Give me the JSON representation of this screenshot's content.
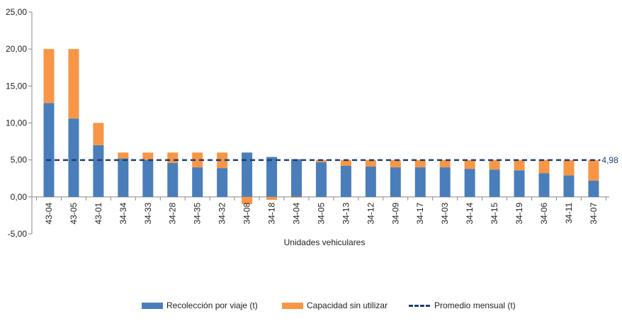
{
  "chart_data": {
    "type": "bar",
    "stacked": true,
    "title": "",
    "xlabel": "Unidades vehiculares",
    "ylabel": "",
    "ylim": [
      -5,
      25
    ],
    "yticks": [
      "-5,00",
      "0,00",
      "5,00",
      "10,00",
      "15,00",
      "20,00",
      "25,00"
    ],
    "grid": false,
    "legend_position": "bottom",
    "categories": [
      "43-04",
      "43-05",
      "43-01",
      "34-34",
      "34-33",
      "34-28",
      "34-35",
      "34-32",
      "34-08",
      "34-18",
      "34-04",
      "34-05",
      "34-13",
      "34-12",
      "34-09",
      "34-17",
      "34-03",
      "34-14",
      "34-15",
      "34-19",
      "34-06",
      "34-11",
      "34-07"
    ],
    "series": [
      {
        "name": "Recolección por viaje (t)",
        "color": "#4a7ebb",
        "values": [
          12.7,
          10.6,
          7.0,
          5.2,
          5.0,
          4.6,
          4.0,
          3.9,
          6.0,
          5.4,
          5.1,
          4.7,
          4.2,
          4.1,
          4.0,
          4.0,
          4.0,
          3.8,
          3.7,
          3.6,
          3.2,
          2.9,
          2.2
        ]
      },
      {
        "name": "Capacidad sin utilizar",
        "color": "#f79646",
        "values": [
          7.3,
          9.4,
          3.0,
          0.8,
          1.0,
          1.4,
          2.0,
          2.1,
          -1.0,
          -0.4,
          -0.1,
          0.3,
          0.8,
          0.9,
          1.0,
          1.0,
          1.0,
          1.2,
          1.3,
          1.4,
          1.8,
          2.1,
          2.8
        ]
      }
    ],
    "reference_line": {
      "name": "Promedio mensual (t)",
      "value": 4.98,
      "label": "4,98",
      "color": "#1f3e73",
      "style": "dashed"
    }
  }
}
